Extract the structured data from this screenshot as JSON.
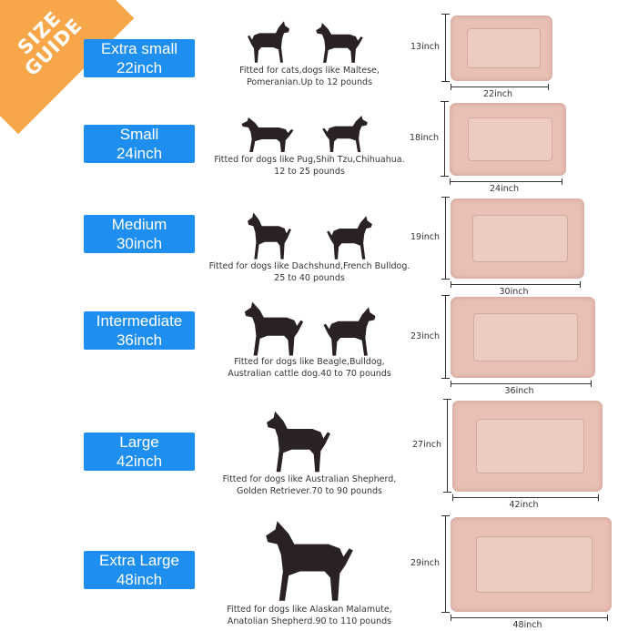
{
  "banner": {
    "line1": "SIZE",
    "line2": "GUIDE",
    "color": "#f7a74a"
  },
  "accent_color": "#1e8ff0",
  "mat_color": "#e9c0b5",
  "sizes": [
    {
      "name": "Extra small",
      "length": "22inch",
      "desc1": "Fitted for cats,dogs like Maltese,",
      "desc2": "Pomeranian.Up to 12 pounds",
      "width_label": "22inch",
      "height_label": "13inch"
    },
    {
      "name": "Small",
      "length": "24inch",
      "desc1": "Fitted for dogs like Pug,Shih Tzu,Chihuahua.",
      "desc2": "12 to 25 pounds",
      "width_label": "24inch",
      "height_label": "18inch"
    },
    {
      "name": "Medium",
      "length": "30inch",
      "desc1": "Fitted for dogs like Dachshund,French Bulldog.",
      "desc2": "25 to 40 pounds",
      "width_label": "30inch",
      "height_label": "19inch"
    },
    {
      "name": "Intermediate",
      "length": "36inch",
      "desc1": "Fitted for dogs like Beagle,Bulldog,",
      "desc2": "Australian cattle dog.40 to 70 pounds",
      "width_label": "36inch",
      "height_label": "23inch"
    },
    {
      "name": "Large",
      "length": "42inch",
      "desc1": "Fitted for dogs like Australian Shepherd,",
      "desc2": "Golden Retriever.70 to 90 pounds",
      "width_label": "42inch",
      "height_label": "27inch"
    },
    {
      "name": "Extra Large",
      "length": "48inch",
      "desc1": "Fitted for dogs like Alaskan Malamute,",
      "desc2": "Anatolian Shepherd.90 to 110 pounds",
      "width_label": "48inch",
      "height_label": "29inch"
    }
  ]
}
